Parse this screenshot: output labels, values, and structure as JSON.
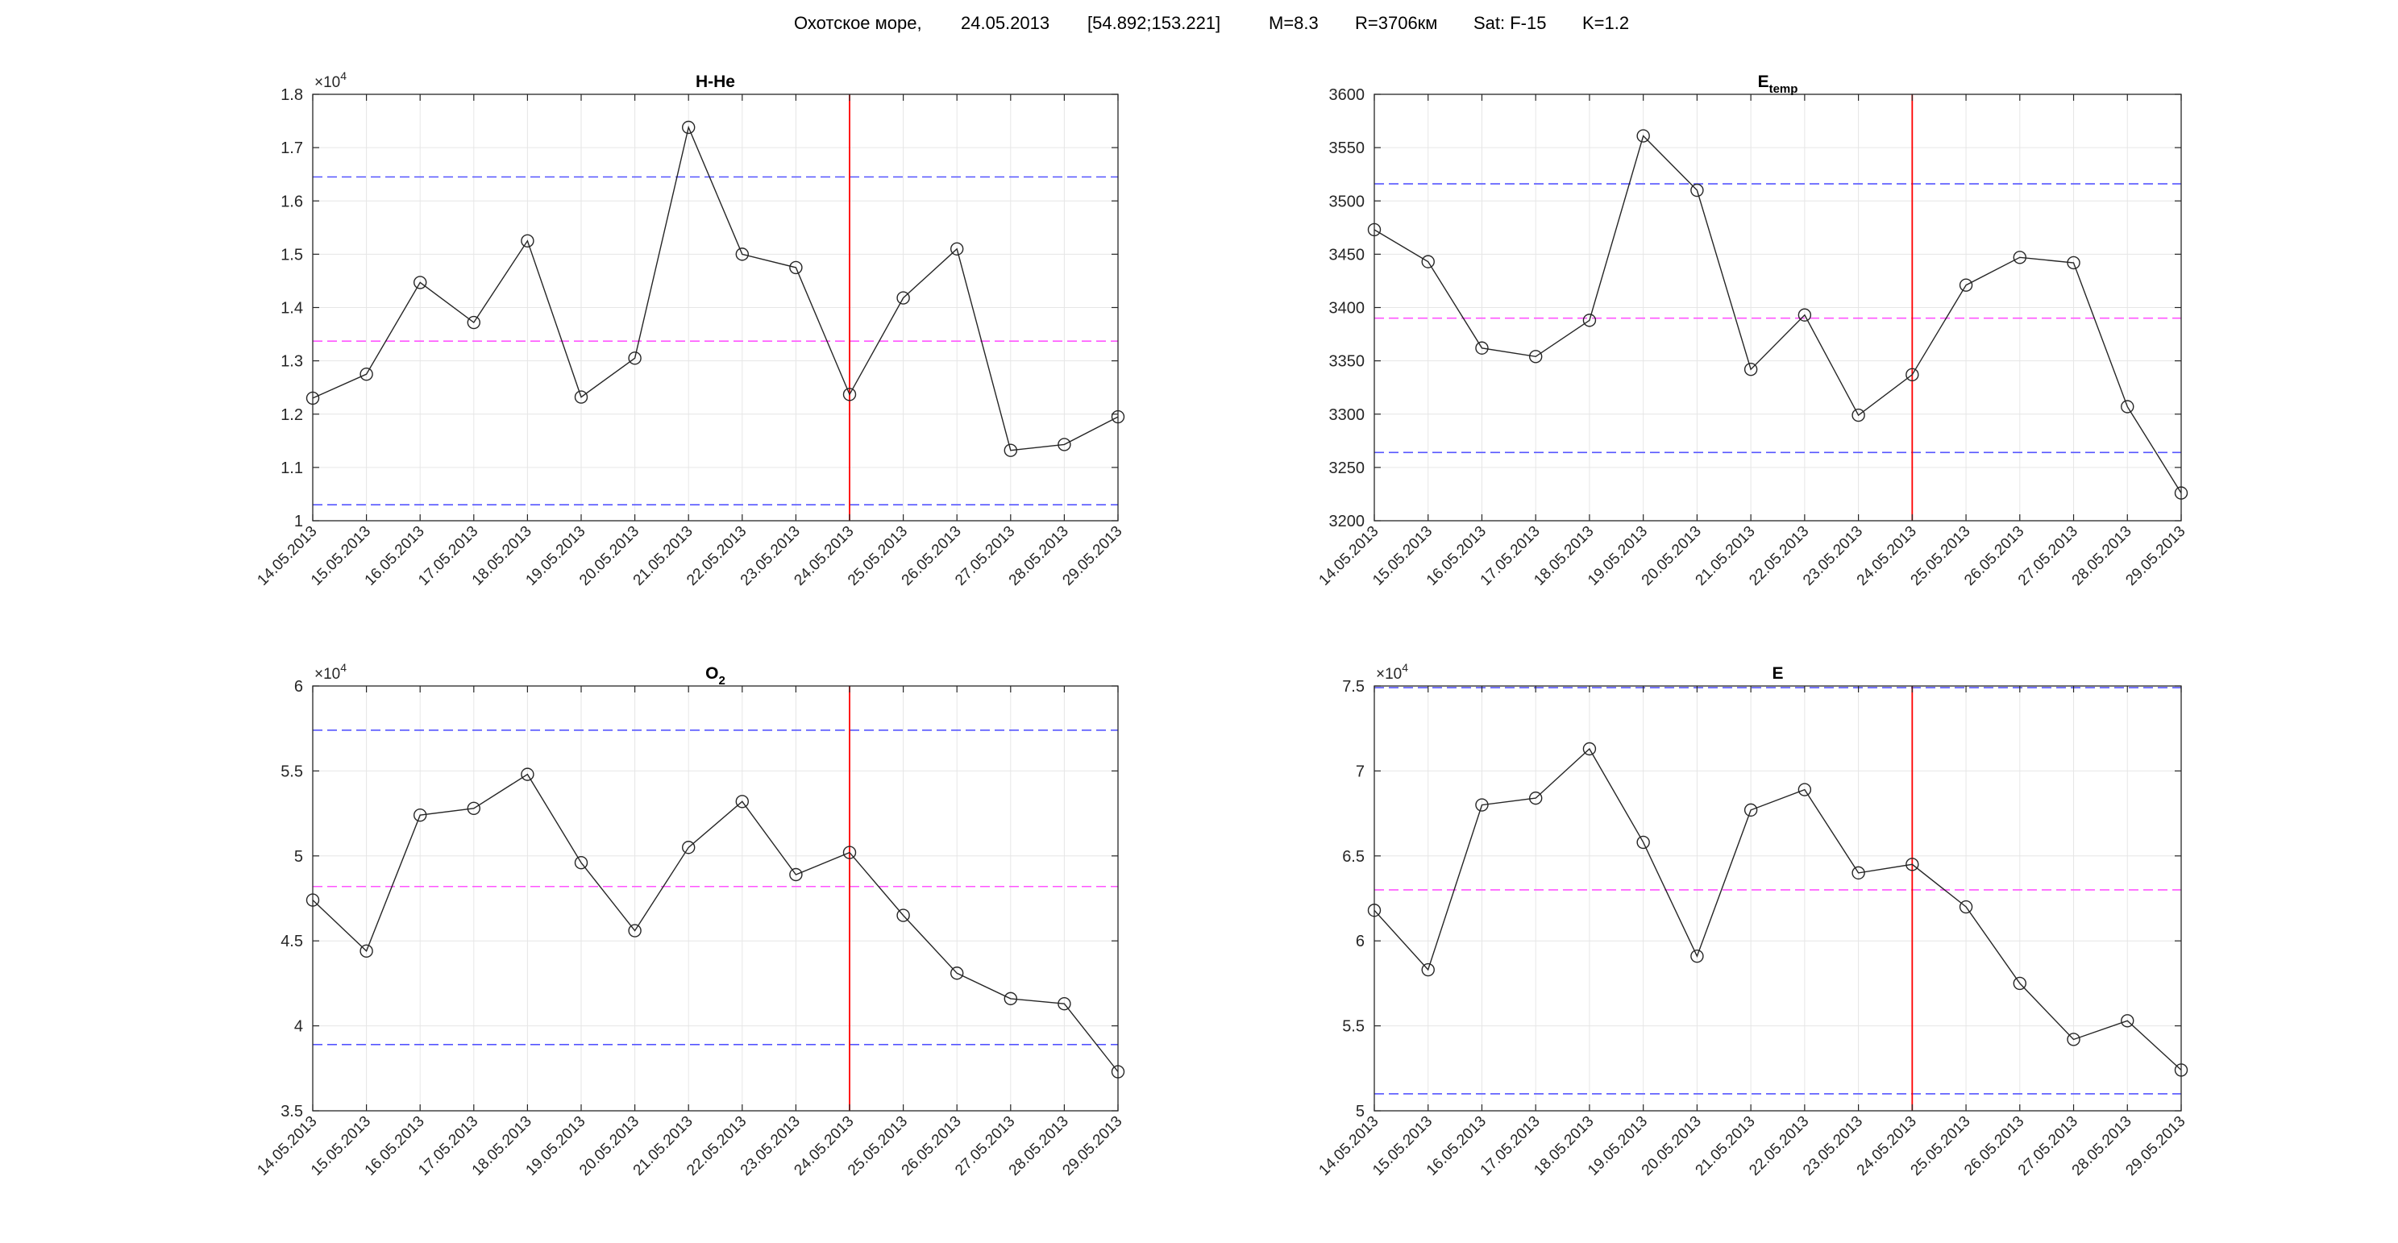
{
  "header": {
    "place": "Охотское море,",
    "date": "24.05.2013",
    "coords": "[54.892;153.221]",
    "magnitude": "M=8.3",
    "radius": "R=3706км",
    "satellite": "Sat: F-15",
    "k": "K=1.2"
  },
  "colors": {
    "series": "#262626",
    "threshold": "#5555ff",
    "mean": "#ff55ff",
    "event": "#ff0000",
    "grid": "#e6e6e6",
    "axis": "#262626"
  },
  "chart_data": [
    {
      "type": "line",
      "title": "H-He",
      "title_sub": "",
      "multiplier": "×10",
      "multiplier_exp": "4",
      "x": [
        "14.05.2013",
        "15.05.2013",
        "16.05.2013",
        "17.05.2013",
        "18.05.2013",
        "19.05.2013",
        "20.05.2013",
        "21.05.2013",
        "22.05.2013",
        "23.05.2013",
        "24.05.2013",
        "25.05.2013",
        "26.05.2013",
        "27.05.2013",
        "28.05.2013",
        "29.05.2013"
      ],
      "values": [
        1.23,
        1.275,
        1.447,
        1.372,
        1.525,
        1.232,
        1.305,
        1.738,
        1.5,
        1.475,
        1.237,
        1.418,
        1.51,
        1.132,
        1.143,
        1.195
      ],
      "ylim": [
        1,
        1.8
      ],
      "yticks": [
        "1",
        "1.1",
        "1.2",
        "1.3",
        "1.4",
        "1.5",
        "1.6",
        "1.7",
        "1.8"
      ],
      "upper_threshold": 1.645,
      "mean": 1.337,
      "lower_threshold": 1.03,
      "event_date": "24.05.2013",
      "grid": true
    },
    {
      "type": "line",
      "title": "E",
      "title_sub": "temp",
      "multiplier": "",
      "multiplier_exp": "",
      "x": [
        "14.05.2013",
        "15.05.2013",
        "16.05.2013",
        "17.05.2013",
        "18.05.2013",
        "19.05.2013",
        "20.05.2013",
        "21.05.2013",
        "22.05.2013",
        "23.05.2013",
        "24.05.2013",
        "25.05.2013",
        "26.05.2013",
        "27.05.2013",
        "28.05.2013",
        "29.05.2013"
      ],
      "values": [
        3473,
        3443,
        3362,
        3354,
        3388,
        3561,
        3510,
        3342,
        3393,
        3299,
        3337,
        3421,
        3447,
        3442,
        3307,
        3226
      ],
      "ylim": [
        3200,
        3600
      ],
      "yticks": [
        "3200",
        "3250",
        "3300",
        "3350",
        "3400",
        "3450",
        "3500",
        "3550",
        "3600"
      ],
      "upper_threshold": 3516,
      "mean": 3390,
      "lower_threshold": 3264,
      "event_date": "24.05.2013",
      "grid": true
    },
    {
      "type": "line",
      "title": "O",
      "title_sub": "2",
      "multiplier": "×10",
      "multiplier_exp": "4",
      "x": [
        "14.05.2013",
        "15.05.2013",
        "16.05.2013",
        "17.05.2013",
        "18.05.2013",
        "19.05.2013",
        "20.05.2013",
        "21.05.2013",
        "22.05.2013",
        "23.05.2013",
        "24.05.2013",
        "25.05.2013",
        "26.05.2013",
        "27.05.2013",
        "28.05.2013",
        "29.05.2013"
      ],
      "values": [
        4.74,
        4.44,
        5.24,
        5.28,
        5.48,
        4.96,
        4.56,
        5.05,
        5.32,
        4.89,
        5.02,
        4.65,
        4.31,
        4.16,
        4.13,
        3.73
      ],
      "ylim": [
        3.5,
        6
      ],
      "yticks": [
        "3.5",
        "4",
        "4.5",
        "5",
        "5.5",
        "6"
      ],
      "upper_threshold": 5.74,
      "mean": 4.82,
      "lower_threshold": 3.89,
      "event_date": "24.05.2013",
      "grid": true
    },
    {
      "type": "line",
      "title": "E",
      "title_sub": "",
      "multiplier": "×10",
      "multiplier_exp": "4",
      "x": [
        "14.05.2013",
        "15.05.2013",
        "16.05.2013",
        "17.05.2013",
        "18.05.2013",
        "19.05.2013",
        "20.05.2013",
        "21.05.2013",
        "22.05.2013",
        "23.05.2013",
        "24.05.2013",
        "25.05.2013",
        "26.05.2013",
        "27.05.2013",
        "28.05.2013",
        "29.05.2013"
      ],
      "values": [
        6.18,
        5.83,
        6.8,
        6.84,
        7.13,
        6.58,
        5.91,
        6.77,
        6.89,
        6.4,
        6.45,
        6.2,
        5.75,
        5.42,
        5.53,
        5.24
      ],
      "ylim": [
        5,
        7.5
      ],
      "yticks": [
        "5",
        "5.5",
        "6",
        "6.5",
        "7",
        "7.5"
      ],
      "upper_threshold": 7.49,
      "mean": 6.3,
      "lower_threshold": 5.1,
      "event_date": "24.05.2013",
      "grid": true
    }
  ]
}
